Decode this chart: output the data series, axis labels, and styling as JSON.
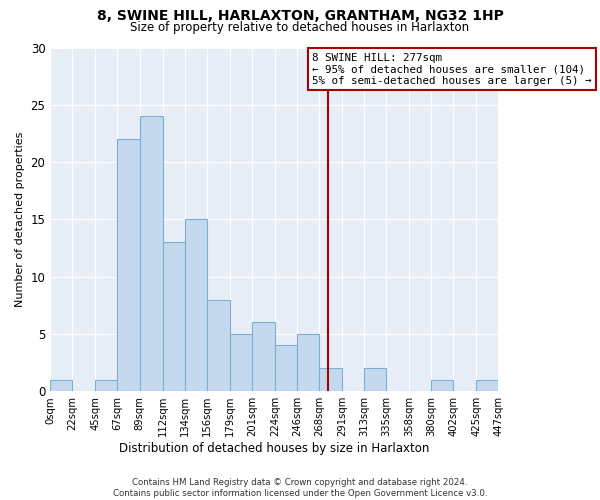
{
  "title": "8, SWINE HILL, HARLAXTON, GRANTHAM, NG32 1HP",
  "subtitle": "Size of property relative to detached houses in Harlaxton",
  "xlabel": "Distribution of detached houses by size in Harlaxton",
  "ylabel": "Number of detached properties",
  "bar_color": "#c5d9ee",
  "bar_edge_color": "#7bafd4",
  "background_color": "#e8eef8",
  "grid_color": "#ffffff",
  "bins": [
    0,
    22,
    45,
    67,
    89,
    112,
    134,
    156,
    179,
    201,
    224,
    246,
    268,
    291,
    313,
    335,
    358,
    380,
    402,
    425,
    447
  ],
  "counts": [
    1,
    0,
    1,
    22,
    24,
    13,
    15,
    8,
    5,
    6,
    4,
    5,
    2,
    0,
    2,
    0,
    0,
    1,
    0,
    1
  ],
  "property_value": 277,
  "annotation_line1": "8 SWINE HILL: 277sqm",
  "annotation_line2": "← 95% of detached houses are smaller (104)",
  "annotation_line3": "5% of semi-detached houses are larger (5) →",
  "vline_color": "#aa0000",
  "ann_edge_color": "#aa0000",
  "footer_text": "Contains HM Land Registry data © Crown copyright and database right 2024.\nContains public sector information licensed under the Open Government Licence v3.0.",
  "ylim": [
    0,
    30
  ],
  "yticks": [
    0,
    5,
    10,
    15,
    20,
    25,
    30
  ],
  "tick_labels": [
    "0sqm",
    "22sqm",
    "45sqm",
    "67sqm",
    "89sqm",
    "112sqm",
    "134sqm",
    "156sqm",
    "179sqm",
    "201sqm",
    "224sqm",
    "246sqm",
    "268sqm",
    "291sqm",
    "313sqm",
    "335sqm",
    "358sqm",
    "380sqm",
    "402sqm",
    "425sqm",
    "447sqm"
  ]
}
